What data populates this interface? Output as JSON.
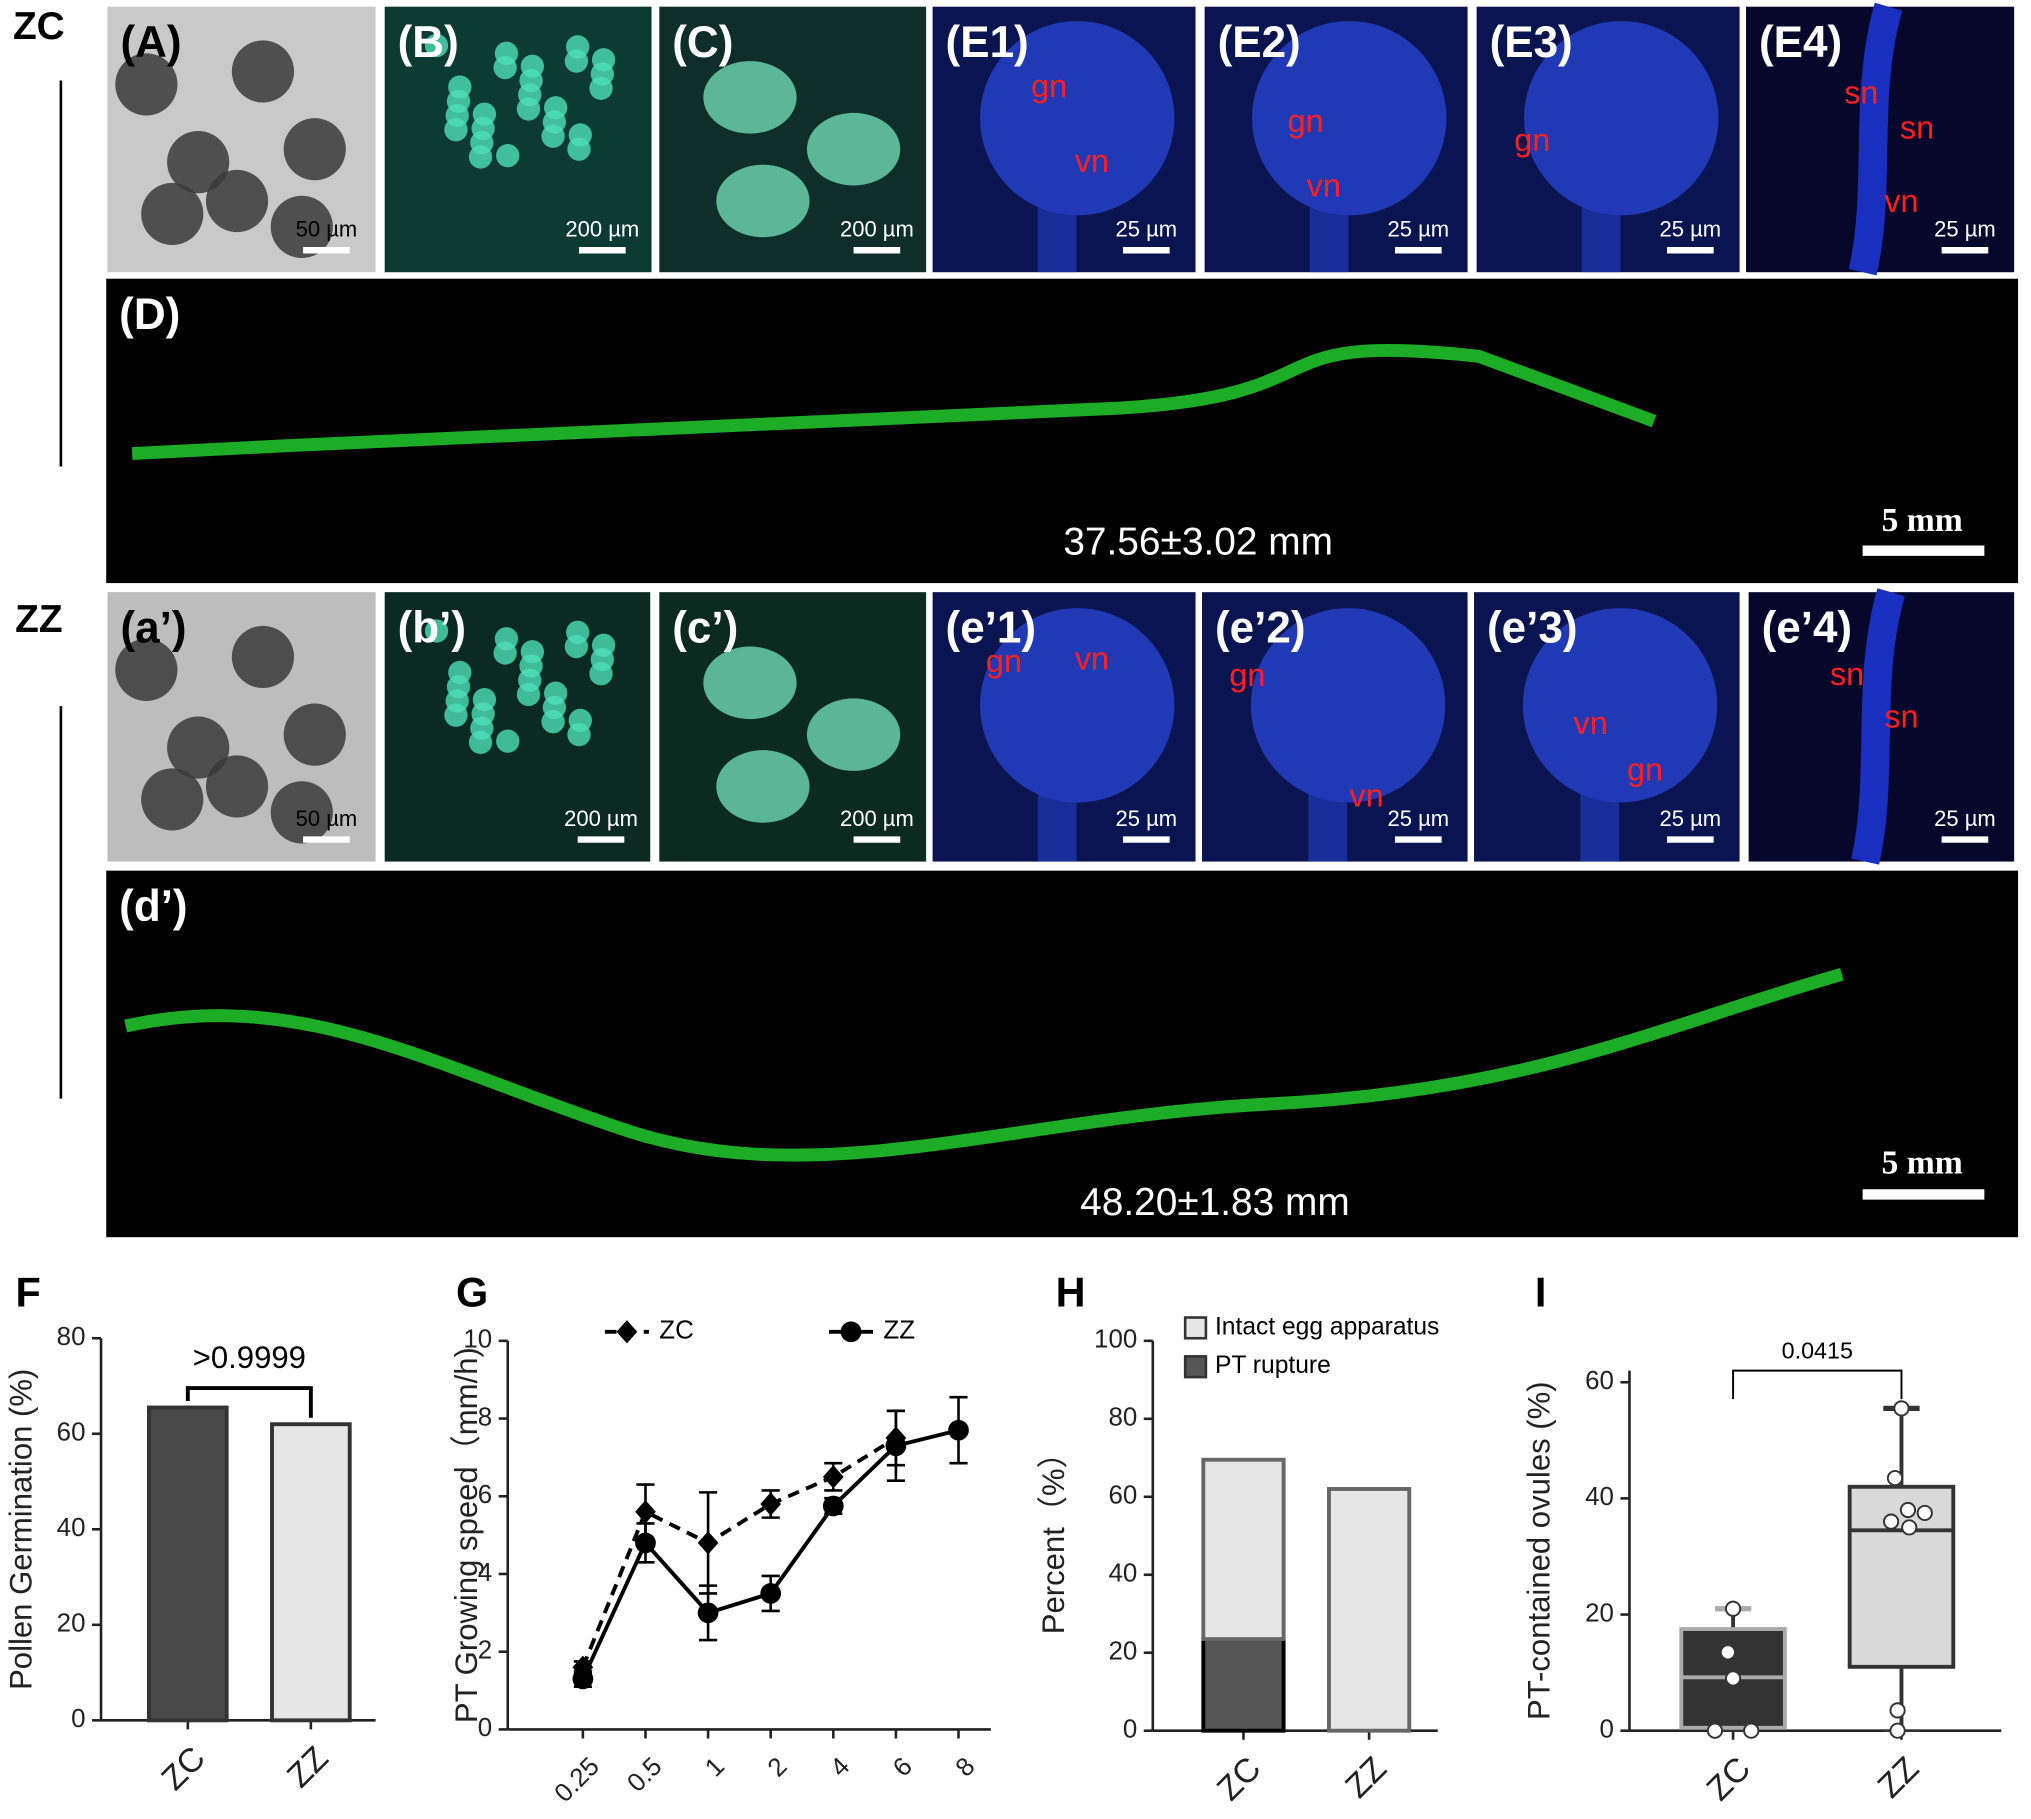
{
  "rows": [
    {
      "label": "ZC"
    },
    {
      "label": "ZZ"
    }
  ],
  "panels": [
    {
      "label": "(A)",
      "scale_bar": "50 µm",
      "notes": []
    },
    {
      "label": "(B)",
      "scale_bar": "200 µm",
      "notes": []
    },
    {
      "label": "(C)",
      "scale_bar": "200 µm",
      "notes": []
    },
    {
      "label": "(E1)",
      "scale_bar": "25 µm",
      "notes": [
        "gn",
        "vn"
      ]
    },
    {
      "label": "(E2)",
      "scale_bar": "25 µm",
      "notes": [
        "gn",
        "vn"
      ]
    },
    {
      "label": "(E3)",
      "scale_bar": "25 µm",
      "notes": [
        "gn"
      ]
    },
    {
      "label": "(E4)",
      "scale_bar": "25 µm",
      "notes": [
        "sn",
        "sn",
        "vn"
      ]
    },
    {
      "label": "(D)",
      "scale_bar": "5 mm",
      "notes": [],
      "measure": "37.56±3.02 mm"
    },
    {
      "label": "(a’)",
      "scale_bar": "50 µm",
      "notes": []
    },
    {
      "label": "(b’)",
      "scale_bar": "200 µm",
      "notes": []
    },
    {
      "label": "(c’)",
      "scale_bar": "200 µm",
      "notes": []
    },
    {
      "label": "(e’1)",
      "scale_bar": "25 µm",
      "notes": [
        "gn",
        "vn"
      ]
    },
    {
      "label": "(e’2)",
      "scale_bar": "25 µm",
      "notes": [
        "gn",
        "vn"
      ]
    },
    {
      "label": "(e’3)",
      "scale_bar": "25 µm",
      "notes": [
        "vn",
        "gn"
      ]
    },
    {
      "label": "(e’4)",
      "scale_bar": "25 µm",
      "notes": [
        "sn",
        "sn"
      ]
    },
    {
      "label": "(d’)",
      "scale_bar": "5 mm",
      "notes": [],
      "measure": "48.20±1.83 mm"
    }
  ],
  "chart_data": [
    {
      "type": "bar",
      "panel_label": "F",
      "ylabel": "Pollen Germination (%)",
      "categories": [
        "ZC",
        "ZZ"
      ],
      "values": [
        65.5,
        62
      ],
      "colors": [
        "#4a4a4a",
        "#e6e6e6"
      ],
      "ylim": [
        0,
        80
      ],
      "yticks": [
        0,
        20,
        40,
        60,
        80
      ],
      "annotation": ">0.9999"
    },
    {
      "type": "line",
      "panel_label": "G",
      "ylabel": "PT Growing speed（mm/h)",
      "categories": [
        "0.25",
        "0.5",
        "1",
        "2",
        "4",
        "6",
        "8"
      ],
      "series": [
        {
          "name": "ZC",
          "color": "#000000",
          "dashed": true,
          "marker": "diamond",
          "values": [
            1.6,
            5.6,
            4.8,
            5.8,
            6.5,
            7.5,
            null
          ],
          "errors": [
            0.15,
            0.7,
            1.3,
            0.35,
            0.35,
            0.7,
            null
          ]
        },
        {
          "name": "ZZ",
          "color": "#000000",
          "dashed": false,
          "marker": "circle",
          "values": [
            1.3,
            4.8,
            3.0,
            3.5,
            5.75,
            7.3,
            7.7
          ],
          "errors": [
            0.2,
            0.5,
            0.7,
            0.45,
            0.2,
            0.9,
            0.85
          ]
        }
      ],
      "ylim": [
        0,
        10
      ],
      "yticks": [
        0,
        2,
        4,
        6,
        8,
        10
      ]
    },
    {
      "type": "stacked_bar",
      "panel_label": "H",
      "ylabel": "Percent（%）",
      "categories": [
        "ZC",
        "ZZ"
      ],
      "series": [
        {
          "name": "PT rupture",
          "color": "#555555",
          "values": [
            23.5,
            0
          ]
        },
        {
          "name": "Intact egg apparatus",
          "color": "#e6e6e6",
          "values": [
            46,
            62
          ]
        }
      ],
      "ylim": [
        0,
        100
      ],
      "yticks": [
        0,
        20,
        40,
        60,
        80,
        100
      ]
    },
    {
      "type": "box",
      "panel_label": "I",
      "ylabel": "PT-contained ovules (%)",
      "groups": [
        {
          "name": "ZC",
          "color": "#333333",
          "min": 0,
          "q1": 0.5,
          "median": 9.2,
          "q3": 17.5,
          "max": 21,
          "points": [
            21,
            13.5,
            9,
            0,
            0
          ]
        },
        {
          "name": "ZZ",
          "color": "#d9d9d9",
          "min": 0,
          "q1": 11,
          "median": 34.5,
          "q3": 42,
          "max": 55.5,
          "points": [
            55.5,
            43.5,
            37.5,
            38,
            36,
            35,
            3.5,
            0
          ]
        }
      ],
      "ylim": [
        0,
        62
      ],
      "yticks": [
        0,
        20,
        40,
        60
      ],
      "annotation": "0.0415"
    }
  ]
}
